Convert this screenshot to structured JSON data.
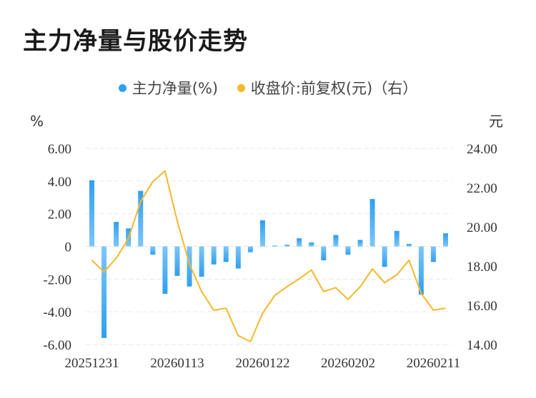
{
  "chart_data": {
    "type": "bar",
    "title": "主力净量与股价走势",
    "legend": {
      "position": "top",
      "items": [
        {
          "label": "主力净量(%)",
          "color": "#2f9ff0"
        },
        {
          "label": "收盘价:前复权(元)（右）",
          "color": "#f4b82a"
        }
      ]
    },
    "left_axis": {
      "unit": "%",
      "ylim": [
        -6,
        6
      ],
      "ticks": [
        "6.00",
        "4.00",
        "2.00",
        "0",
        "-2.00",
        "-4.00",
        "-6.00"
      ]
    },
    "right_axis": {
      "unit": "元",
      "ylim": [
        14,
        24
      ],
      "ticks": [
        "24.00",
        "22.00",
        "20.00",
        "18.00",
        "16.00",
        "14.00"
      ]
    },
    "x_tick_labels": [
      "20251231",
      "20260113",
      "20260122",
      "20260202",
      "20260211"
    ],
    "x_tick_index": [
      0,
      7,
      14,
      21,
      28
    ],
    "series": [
      {
        "name": "主力净量(%)",
        "type": "bar",
        "axis": "left",
        "color": "#2f9ff0",
        "values": [
          4.05,
          -5.6,
          1.5,
          1.1,
          3.4,
          -0.5,
          -2.9,
          -1.8,
          -2.45,
          -1.85,
          -1.1,
          -0.95,
          -1.35,
          -0.35,
          1.6,
          0.05,
          0.1,
          0.5,
          0.25,
          -0.85,
          0.7,
          -0.5,
          0.4,
          2.9,
          -1.25,
          0.95,
          0.15,
          -2.95,
          -0.95,
          0.8
        ]
      },
      {
        "name": "收盘价:前复权(元)（右）",
        "type": "line",
        "axis": "right",
        "color": "#f4b82a",
        "values": [
          18.3,
          17.7,
          18.4,
          19.4,
          21.3,
          22.3,
          22.85,
          20.3,
          18.1,
          16.7,
          15.75,
          15.85,
          14.45,
          14.15,
          15.6,
          16.5,
          16.95,
          17.35,
          17.8,
          16.7,
          16.9,
          16.3,
          16.95,
          17.85,
          17.15,
          17.55,
          18.3,
          16.6,
          15.75,
          15.85
        ]
      }
    ]
  }
}
